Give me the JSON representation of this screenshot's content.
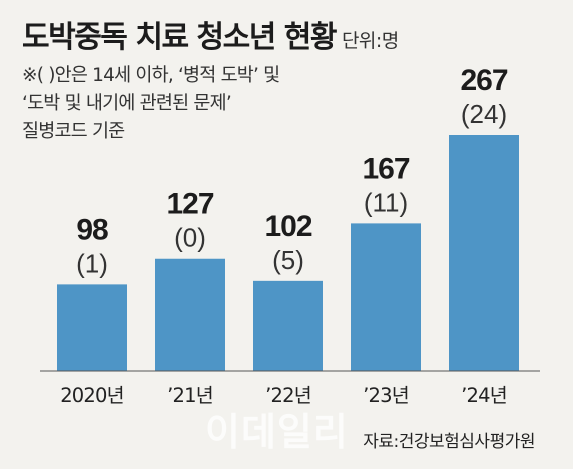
{
  "title": "도박중독 치료 청소년 현황",
  "unit": "단위:명",
  "notes": [
    "※(  )안은 14세 이하, ‘병적 도박’ 및",
    "‘도박 및 내기에 관련된 문제’",
    "질병코드 기준"
  ],
  "source": "자료:건강보험심사평가원",
  "watermark": "이데일리",
  "colors": {
    "bar": "#4e95c6",
    "baseline": "#555555",
    "background": "#f3f2ee"
  },
  "chart_data": {
    "type": "bar",
    "categories": [
      "2020년",
      "’21년",
      "’22년",
      "’23년",
      "’24년"
    ],
    "values": [
      98,
      127,
      102,
      167,
      267
    ],
    "sub_values": [
      "(1)",
      "(0)",
      "(5)",
      "(11)",
      "(24)"
    ],
    "series": [
      {
        "values": [
          98,
          127,
          102,
          167,
          267
        ]
      },
      {
        "values": [
          1,
          0,
          5,
          11,
          24
        ]
      }
    ],
    "ylim": [
      0,
      267
    ],
    "grid": false
  }
}
